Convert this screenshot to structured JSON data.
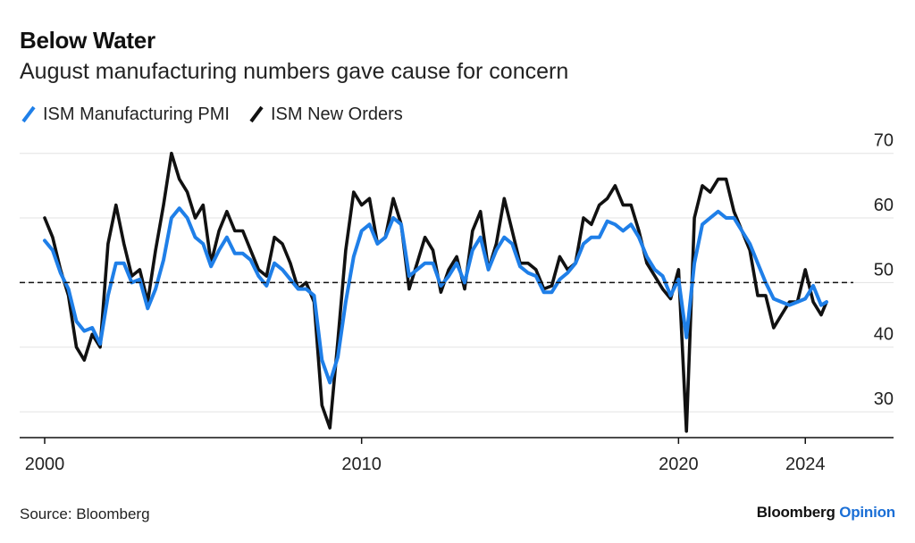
{
  "header": {
    "title": "Below Water",
    "subtitle": "August manufacturing numbers gave cause for concern"
  },
  "footer": {
    "source": "Source: Bloomberg",
    "brand": "Bloomberg",
    "brand_accent": "Opinion"
  },
  "colors": {
    "pmi": "#1f7fe8",
    "new_orders": "#111111",
    "grid": "#e3e3e3",
    "reference": "#111111",
    "brand_accent": "#1b6fd6"
  },
  "chart_data": {
    "type": "line",
    "title": "Below Water",
    "subtitle": "August manufacturing numbers gave cause for concern",
    "xlabel": "",
    "ylabel": "",
    "xlim": [
      2000,
      2024.67
    ],
    "ylim": [
      26,
      73
    ],
    "y_axis_position": "right",
    "yticks": [
      30,
      40,
      50,
      60,
      70
    ],
    "xticks": [
      2000,
      2010,
      2020,
      2024
    ],
    "grid": true,
    "legend_position": "top-left",
    "reference_line": {
      "y": 50,
      "style": "dashed"
    },
    "series": [
      {
        "name": "ISM Manufacturing PMI",
        "color": "#1f7fe8",
        "points": [
          [
            2000.0,
            56.5
          ],
          [
            2000.25,
            55
          ],
          [
            2000.5,
            51.5
          ],
          [
            2000.75,
            49
          ],
          [
            2001.0,
            44
          ],
          [
            2001.25,
            42.5
          ],
          [
            2001.5,
            43
          ],
          [
            2001.75,
            40.5
          ],
          [
            2002.0,
            48
          ],
          [
            2002.25,
            53
          ],
          [
            2002.5,
            53
          ],
          [
            2002.75,
            50
          ],
          [
            2003.0,
            50.5
          ],
          [
            2003.25,
            46
          ],
          [
            2003.5,
            49
          ],
          [
            2003.75,
            53.5
          ],
          [
            2004.0,
            60
          ],
          [
            2004.25,
            61.5
          ],
          [
            2004.5,
            60
          ],
          [
            2004.75,
            57
          ],
          [
            2005.0,
            56
          ],
          [
            2005.25,
            52.5
          ],
          [
            2005.5,
            55
          ],
          [
            2005.75,
            57
          ],
          [
            2006.0,
            54.5
          ],
          [
            2006.25,
            54.5
          ],
          [
            2006.5,
            53.5
          ],
          [
            2006.75,
            51
          ],
          [
            2007.0,
            49.5
          ],
          [
            2007.25,
            53
          ],
          [
            2007.5,
            52
          ],
          [
            2007.75,
            50.5
          ],
          [
            2008.0,
            49
          ],
          [
            2008.25,
            49
          ],
          [
            2008.5,
            48
          ],
          [
            2008.75,
            38
          ],
          [
            2009.0,
            34.5
          ],
          [
            2009.25,
            38.5
          ],
          [
            2009.5,
            47
          ],
          [
            2009.75,
            54
          ],
          [
            2010.0,
            58
          ],
          [
            2010.25,
            59
          ],
          [
            2010.5,
            56
          ],
          [
            2010.75,
            57
          ],
          [
            2011.0,
            60
          ],
          [
            2011.25,
            59
          ],
          [
            2011.5,
            51
          ],
          [
            2011.75,
            52
          ],
          [
            2012.0,
            53
          ],
          [
            2012.25,
            53
          ],
          [
            2012.5,
            49.5
          ],
          [
            2012.75,
            51
          ],
          [
            2013.0,
            53
          ],
          [
            2013.25,
            50
          ],
          [
            2013.5,
            55
          ],
          [
            2013.75,
            57
          ],
          [
            2014.0,
            52
          ],
          [
            2014.25,
            55
          ],
          [
            2014.5,
            57
          ],
          [
            2014.75,
            56
          ],
          [
            2015.0,
            52.5
          ],
          [
            2015.25,
            51.5
          ],
          [
            2015.5,
            51
          ],
          [
            2015.75,
            48.5
          ],
          [
            2016.0,
            48.5
          ],
          [
            2016.25,
            50.5
          ],
          [
            2016.5,
            51.5
          ],
          [
            2016.75,
            53
          ],
          [
            2017.0,
            56
          ],
          [
            2017.25,
            57
          ],
          [
            2017.5,
            57
          ],
          [
            2017.75,
            59.5
          ],
          [
            2018.0,
            59
          ],
          [
            2018.25,
            58
          ],
          [
            2018.5,
            59
          ],
          [
            2018.75,
            57
          ],
          [
            2019.0,
            54
          ],
          [
            2019.25,
            52
          ],
          [
            2019.5,
            51
          ],
          [
            2019.75,
            48
          ],
          [
            2020.0,
            50.5
          ],
          [
            2020.25,
            41.5
          ],
          [
            2020.5,
            53
          ],
          [
            2020.75,
            59
          ],
          [
            2021.0,
            60
          ],
          [
            2021.25,
            61
          ],
          [
            2021.5,
            60
          ],
          [
            2021.75,
            60
          ],
          [
            2022.0,
            58
          ],
          [
            2022.25,
            56
          ],
          [
            2022.5,
            53
          ],
          [
            2022.75,
            50
          ],
          [
            2023.0,
            47.5
          ],
          [
            2023.25,
            47
          ],
          [
            2023.5,
            46.5
          ],
          [
            2023.75,
            47
          ],
          [
            2024.0,
            47.5
          ],
          [
            2024.25,
            49.5
          ],
          [
            2024.5,
            46.5
          ],
          [
            2024.67,
            47
          ]
        ]
      },
      {
        "name": "ISM New Orders",
        "color": "#111111",
        "points": [
          [
            2000.0,
            60
          ],
          [
            2000.25,
            57
          ],
          [
            2000.5,
            52
          ],
          [
            2000.75,
            48
          ],
          [
            2001.0,
            40
          ],
          [
            2001.25,
            38
          ],
          [
            2001.5,
            42
          ],
          [
            2001.75,
            40
          ],
          [
            2002.0,
            56
          ],
          [
            2002.25,
            62
          ],
          [
            2002.5,
            56
          ],
          [
            2002.75,
            51
          ],
          [
            2003.0,
            52
          ],
          [
            2003.25,
            47
          ],
          [
            2003.5,
            55
          ],
          [
            2003.75,
            62
          ],
          [
            2004.0,
            70
          ],
          [
            2004.25,
            66
          ],
          [
            2004.5,
            64
          ],
          [
            2004.75,
            60
          ],
          [
            2005.0,
            62
          ],
          [
            2005.25,
            53
          ],
          [
            2005.5,
            58
          ],
          [
            2005.75,
            61
          ],
          [
            2006.0,
            58
          ],
          [
            2006.25,
            58
          ],
          [
            2006.5,
            55
          ],
          [
            2006.75,
            52
          ],
          [
            2007.0,
            51
          ],
          [
            2007.25,
            57
          ],
          [
            2007.5,
            56
          ],
          [
            2007.75,
            53
          ],
          [
            2008.0,
            49
          ],
          [
            2008.25,
            50
          ],
          [
            2008.5,
            47
          ],
          [
            2008.75,
            31
          ],
          [
            2009.0,
            27.5
          ],
          [
            2009.25,
            41
          ],
          [
            2009.5,
            55
          ],
          [
            2009.75,
            64
          ],
          [
            2010.0,
            62
          ],
          [
            2010.25,
            63
          ],
          [
            2010.5,
            56
          ],
          [
            2010.75,
            57
          ],
          [
            2011.0,
            63
          ],
          [
            2011.25,
            59
          ],
          [
            2011.5,
            49
          ],
          [
            2011.75,
            53
          ],
          [
            2012.0,
            57
          ],
          [
            2012.25,
            55
          ],
          [
            2012.5,
            48.5
          ],
          [
            2012.75,
            52
          ],
          [
            2013.0,
            54
          ],
          [
            2013.25,
            49
          ],
          [
            2013.5,
            58
          ],
          [
            2013.75,
            61
          ],
          [
            2014.0,
            52
          ],
          [
            2014.25,
            56
          ],
          [
            2014.5,
            63
          ],
          [
            2014.75,
            58
          ],
          [
            2015.0,
            53
          ],
          [
            2015.25,
            53
          ],
          [
            2015.5,
            52
          ],
          [
            2015.75,
            49
          ],
          [
            2016.0,
            49.5
          ],
          [
            2016.25,
            54
          ],
          [
            2016.5,
            52
          ],
          [
            2016.75,
            53
          ],
          [
            2017.0,
            60
          ],
          [
            2017.25,
            59
          ],
          [
            2017.5,
            62
          ],
          [
            2017.75,
            63
          ],
          [
            2018.0,
            65
          ],
          [
            2018.25,
            62
          ],
          [
            2018.5,
            62
          ],
          [
            2018.75,
            58
          ],
          [
            2019.0,
            53
          ],
          [
            2019.25,
            51
          ],
          [
            2019.5,
            49
          ],
          [
            2019.75,
            47.5
          ],
          [
            2020.0,
            52
          ],
          [
            2020.25,
            27
          ],
          [
            2020.5,
            60
          ],
          [
            2020.75,
            65
          ],
          [
            2021.0,
            64
          ],
          [
            2021.25,
            66
          ],
          [
            2021.5,
            66
          ],
          [
            2021.75,
            61
          ],
          [
            2022.0,
            58
          ],
          [
            2022.25,
            55
          ],
          [
            2022.5,
            48
          ],
          [
            2022.75,
            48
          ],
          [
            2023.0,
            43
          ],
          [
            2023.25,
            45
          ],
          [
            2023.5,
            47
          ],
          [
            2023.75,
            47
          ],
          [
            2024.0,
            52
          ],
          [
            2024.25,
            47
          ],
          [
            2024.5,
            45
          ],
          [
            2024.67,
            47
          ]
        ]
      }
    ]
  }
}
